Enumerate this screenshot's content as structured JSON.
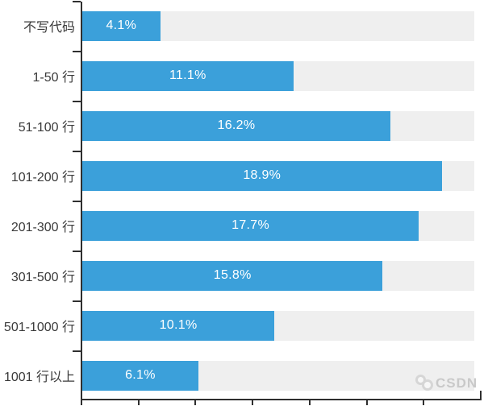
{
  "chart_data": {
    "type": "bar",
    "orientation": "horizontal",
    "title": "",
    "xlabel": "",
    "ylabel": "",
    "categories": [
      "不写代码",
      "1-50 行",
      "51-100 行",
      "101-200 行",
      "201-300 行",
      "301-500 行",
      "501-1000 行",
      "1001 行以上"
    ],
    "values": [
      4.1,
      11.1,
      16.2,
      18.9,
      17.7,
      15.8,
      10.1,
      6.1
    ],
    "value_labels": [
      "4.1%",
      "11.1%",
      "16.2%",
      "18.9%",
      "17.7%",
      "15.8%",
      "10.1%",
      "6.1%"
    ],
    "xlim": [
      0,
      21
    ],
    "x_tick_interval": 3,
    "tick_labels_shown": false,
    "grid": false,
    "legend": null,
    "bar_color": "#3BA0DA",
    "track_color": "#EFEFEF",
    "axis_color": "#2F2F2F",
    "category_label_color": "#3A3A3A",
    "value_text_color": "#FFFFFF"
  },
  "watermark": {
    "text": "CSDN",
    "color": "#C9C9C9"
  }
}
